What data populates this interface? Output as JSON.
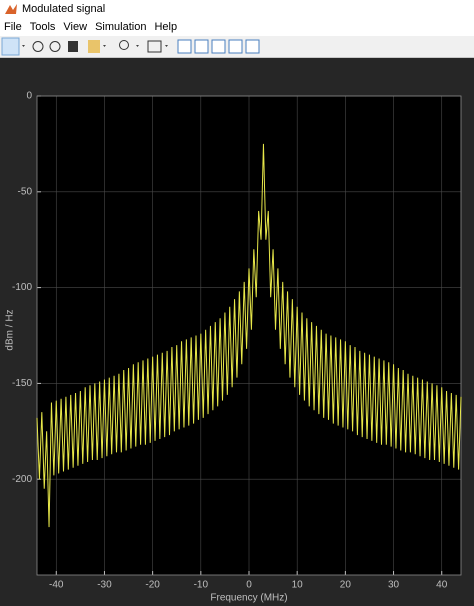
{
  "window": {
    "title": "Modulated signal"
  },
  "menu": [
    "File",
    "Tools",
    "View",
    "Simulation",
    "Help"
  ],
  "chart_data": {
    "type": "line",
    "xlabel": "Frequency (MHz)",
    "ylabel": "dBm / Hz",
    "x": [
      -44,
      -43.5,
      -43,
      -42.5,
      -42,
      -41.5,
      -41,
      -40.5,
      -40,
      -39.5,
      -39,
      -38.5,
      -38,
      -37.5,
      -37,
      -36.5,
      -36,
      -35.5,
      -35,
      -34.5,
      -34,
      -33.5,
      -33,
      -32.5,
      -32,
      -31.5,
      -31,
      -30.5,
      -30,
      -29.5,
      -29,
      -28.5,
      -28,
      -27.5,
      -27,
      -26.5,
      -26,
      -25.5,
      -25,
      -24.5,
      -24,
      -23.5,
      -23,
      -22.5,
      -22,
      -21.5,
      -21,
      -20.5,
      -20,
      -19.5,
      -19,
      -18.5,
      -18,
      -17.5,
      -17,
      -16.5,
      -16,
      -15.5,
      -15,
      -14.5,
      -14,
      -13.5,
      -13,
      -12.5,
      -12,
      -11.5,
      -11,
      -10.5,
      -10,
      -9.5,
      -9,
      -8.5,
      -8,
      -7.5,
      -7,
      -6.5,
      -6,
      -5.5,
      -5,
      -4.5,
      -4,
      -3.5,
      -3,
      -2.5,
      -2,
      -1.5,
      -1,
      -0.5,
      0,
      0.5,
      1,
      1.5,
      2,
      2.5,
      3,
      3.5,
      4,
      4.5,
      5,
      5.5,
      6,
      6.5,
      7,
      7.5,
      8,
      8.5,
      9,
      9.5,
      10,
      10.5,
      11,
      11.5,
      12,
      12.5,
      13,
      13.5,
      14,
      14.5,
      15,
      15.5,
      16,
      16.5,
      17,
      17.5,
      18,
      18.5,
      19,
      19.5,
      20,
      20.5,
      21,
      21.5,
      22,
      22.5,
      23,
      23.5,
      24,
      24.5,
      25,
      25.5,
      26,
      26.5,
      27,
      27.5,
      28,
      28.5,
      29,
      29.5,
      30,
      30.5,
      31,
      31.5,
      32,
      32.5,
      33,
      33.5,
      34,
      34.5,
      35,
      35.5,
      36,
      36.5,
      37,
      37.5,
      38,
      38.5,
      39,
      39.5,
      40,
      40.5,
      41,
      41.5,
      42,
      42.5,
      43,
      43.5,
      44
    ],
    "values": [
      -168,
      -200,
      -165,
      -205,
      -175,
      -225,
      -160,
      -198,
      -159,
      -197,
      -158,
      -196,
      -157,
      -195,
      -156,
      -194,
      -155,
      -193,
      -154,
      -192,
      -152,
      -191,
      -151,
      -190,
      -150,
      -190,
      -149,
      -189,
      -148,
      -188,
      -147,
      -187,
      -146,
      -186,
      -145,
      -186,
      -143,
      -185,
      -142,
      -184,
      -140,
      -183,
      -139,
      -182,
      -138,
      -182,
      -137,
      -181,
      -136,
      -180,
      -135,
      -179,
      -134,
      -178,
      -133,
      -177,
      -131,
      -175,
      -130,
      -174,
      -128,
      -173,
      -127,
      -172,
      -126,
      -171,
      -125,
      -169,
      -124,
      -168,
      -122,
      -166,
      -120,
      -164,
      -118,
      -162,
      -116,
      -159,
      -113,
      -156,
      -110,
      -152,
      -106,
      -147,
      -102,
      -140,
      -97,
      -132,
      -90,
      -122,
      -80,
      -105,
      -60,
      -75,
      -25,
      -75,
      -60,
      -105,
      -80,
      -122,
      -90,
      -132,
      -97,
      -140,
      -102,
      -147,
      -106,
      -152,
      -110,
      -156,
      -113,
      -159,
      -116,
      -162,
      -118,
      -164,
      -120,
      -166,
      -122,
      -168,
      -124,
      -169,
      -125,
      -171,
      -126,
      -172,
      -127,
      -173,
      -128,
      -174,
      -130,
      -175,
      -131,
      -177,
      -133,
      -178,
      -134,
      -179,
      -135,
      -180,
      -136,
      -181,
      -137,
      -182,
      -138,
      -182,
      -139,
      -183,
      -140,
      -184,
      -142,
      -185,
      -143,
      -186,
      -145,
      -186,
      -146,
      -187,
      -147,
      -188,
      -148,
      -189,
      -149,
      -190,
      -150,
      -190,
      -151,
      -191,
      -152,
      -192,
      -154,
      -193,
      -155,
      -194,
      -156,
      -195,
      -157
    ],
    "color": "#e8e84a",
    "xlim": [
      -44,
      44
    ],
    "ylim": [
      -250,
      0
    ],
    "xticks": [
      -40,
      -30,
      -20,
      -10,
      0,
      10,
      20,
      30,
      40
    ],
    "yticks": [
      0,
      -50,
      -100,
      -150,
      -200
    ],
    "grid": true
  }
}
